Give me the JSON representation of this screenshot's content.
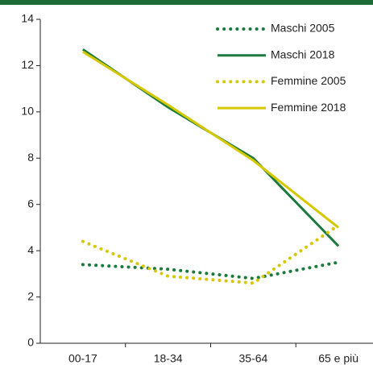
{
  "chart_data": {
    "type": "line",
    "categories": [
      "00-17",
      "18-34",
      "35-64",
      "65 e più"
    ],
    "series": [
      {
        "name": "Maschi 2005",
        "color": "#1b7a3c",
        "dash": "dotted",
        "values": [
          3.4,
          3.2,
          2.8,
          3.5
        ]
      },
      {
        "name": "Maschi 2018",
        "color": "#1b7a3c",
        "dash": "solid",
        "values": [
          12.7,
          10.2,
          8.0,
          4.2
        ]
      },
      {
        "name": "Femmine 2005",
        "color": "#d6c800",
        "dash": "dotted",
        "values": [
          4.4,
          2.9,
          2.6,
          5.1
        ]
      },
      {
        "name": "Femmine 2018",
        "color": "#d6c800",
        "dash": "solid",
        "values": [
          12.6,
          10.3,
          7.9,
          5.0
        ]
      }
    ],
    "ylim": [
      0,
      14
    ],
    "yticks": [
      0,
      2,
      4,
      6,
      8,
      10,
      12,
      14
    ],
    "legend": "top-right"
  }
}
